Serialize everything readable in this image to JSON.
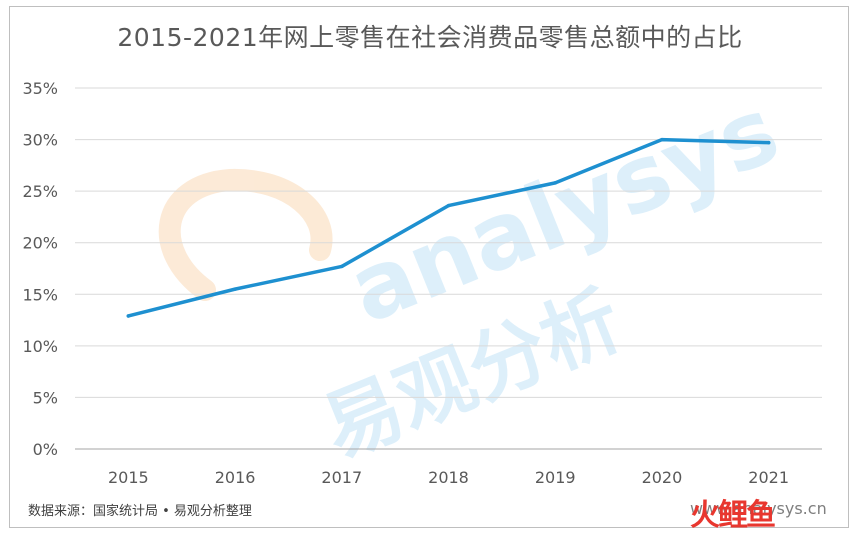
{
  "chart_data": {
    "type": "line",
    "title": "2015-2021年网上零售在社会消费品零售总额中的占比",
    "categories": [
      "2015",
      "2016",
      "2017",
      "2018",
      "2019",
      "2020",
      "2021"
    ],
    "series": [
      {
        "values": [
          12.9,
          15.5,
          17.7,
          23.6,
          25.8,
          30.0,
          29.7
        ]
      }
    ],
    "y_ticks": [
      "0%",
      "5%",
      "10%",
      "15%",
      "20%",
      "25%",
      "30%",
      "35%"
    ],
    "ylim": [
      0,
      35
    ],
    "grid": true,
    "line_color": "#1e90d0"
  },
  "footer": {
    "source": "数据来源：国家统计局 • 易观分析整理",
    "site_url": "www.analysys.cn",
    "logo_text": "火鲤鱼"
  },
  "watermark": {
    "latin": "analysys",
    "chinese": "易观分析"
  }
}
